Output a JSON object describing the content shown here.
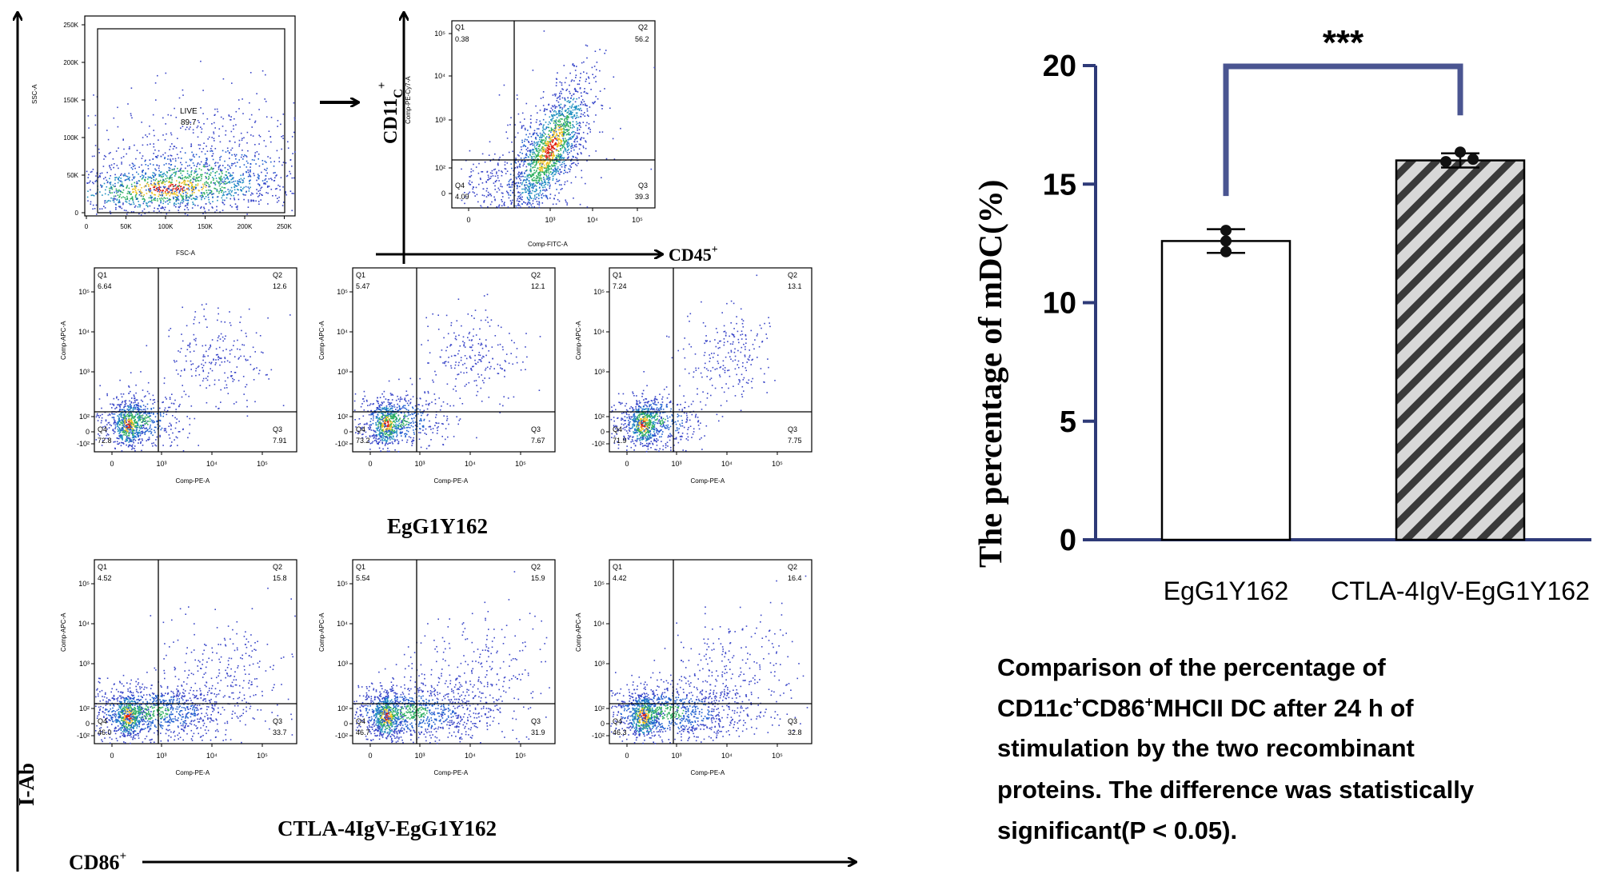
{
  "figure": {
    "y_axis_label": "I-Ab",
    "x_axis_label": "CD86",
    "x_axis_label_sup": "+",
    "cd11c_label": "CD11",
    "cd11c_sub": "C",
    "cd11c_sup": "+",
    "cd45_label": "CD45",
    "cd45_sup": "+",
    "group1_label": "EgG1Y162",
    "group2_label": "CTLA-4IgV-EgG1Y162"
  },
  "gating_plot": {
    "x_axis_title": "FSC-A",
    "y_axis_title": "SSC-A",
    "x_ticks": [
      "0",
      "50K",
      "100K",
      "150K",
      "200K",
      "250K"
    ],
    "y_ticks": [
      "0",
      "50K",
      "100K",
      "150K",
      "200K",
      "250K"
    ],
    "gate_name": "LIVE",
    "gate_value": "89.7"
  },
  "cd11c_plot": {
    "x_axis_title": "Comp-FITC-A",
    "y_axis_title": "Comp-PE-Cy7-A",
    "x_ticks": [
      "0",
      "10³",
      "10⁴",
      "10⁵"
    ],
    "y_ticks": [
      "10⁵",
      "10⁴",
      "10³",
      "10²",
      "0"
    ],
    "quadrants": {
      "q1": "Q1",
      "q1_val": "0.38",
      "q2": "Q2",
      "q2_val": "56.2",
      "q3": "Q3",
      "q3_val": "39.3",
      "q4": "Q4",
      "q4_val": "4.09"
    }
  },
  "flow_plots": {
    "x_axis_title": "Comp-PE-A",
    "y_axis_title": "Comp-APC-A",
    "x_ticks": [
      "0",
      "10³",
      "10⁴",
      "10⁵"
    ],
    "y_ticks": [
      "10⁵",
      "10⁴",
      "10³",
      "10²",
      "0",
      "-10²"
    ],
    "q_names": [
      "Q1",
      "Q2",
      "Q3",
      "Q4"
    ],
    "plots": [
      {
        "q1": "6.64",
        "q2": "12.6",
        "q3": "7.91",
        "q4": "72.8"
      },
      {
        "q1": "5.47",
        "q2": "12.1",
        "q3": "7.67",
        "q4": "73.2"
      },
      {
        "q1": "7.24",
        "q2": "13.1",
        "q3": "7.75",
        "q4": "71.9"
      },
      {
        "q1": "4.52",
        "q2": "15.8",
        "q3": "33.7",
        "q4": "46.0"
      },
      {
        "q1": "5.54",
        "q2": "15.9",
        "q3": "31.9",
        "q4": "46.7"
      },
      {
        "q1": "4.42",
        "q2": "16.4",
        "q3": "32.8",
        "q4": "46.3"
      }
    ]
  },
  "chart_data": {
    "type": "bar",
    "categories": [
      "EgG1Y162",
      "CTLA-4IgV-EgG1Y162"
    ],
    "values": [
      12.6,
      16.0
    ],
    "errors": [
      0.5,
      0.3
    ],
    "points": [
      [
        12.15,
        12.6,
        13.05
      ],
      [
        15.95,
        16.35,
        16.05
      ]
    ],
    "ylabel": "The percentage of mDC(%)",
    "y_ticks": [
      0,
      5,
      10,
      15,
      20
    ],
    "ylim": [
      0,
      20
    ],
    "significance": "***",
    "axis_color": "#2e3a78",
    "bracket_color": "#4a5591"
  },
  "caption": {
    "line1": "Comparison of the percentage of",
    "line2_a": "CD11c",
    "line2_b": "CD86",
    "line2_c": "MHCII  DC after 24 h of",
    "sup_plus": "+",
    "line3": "stimulation by the two recombinant",
    "line4": "proteins. The difference was statistically",
    "line5": "significant(P < 0.05)."
  }
}
